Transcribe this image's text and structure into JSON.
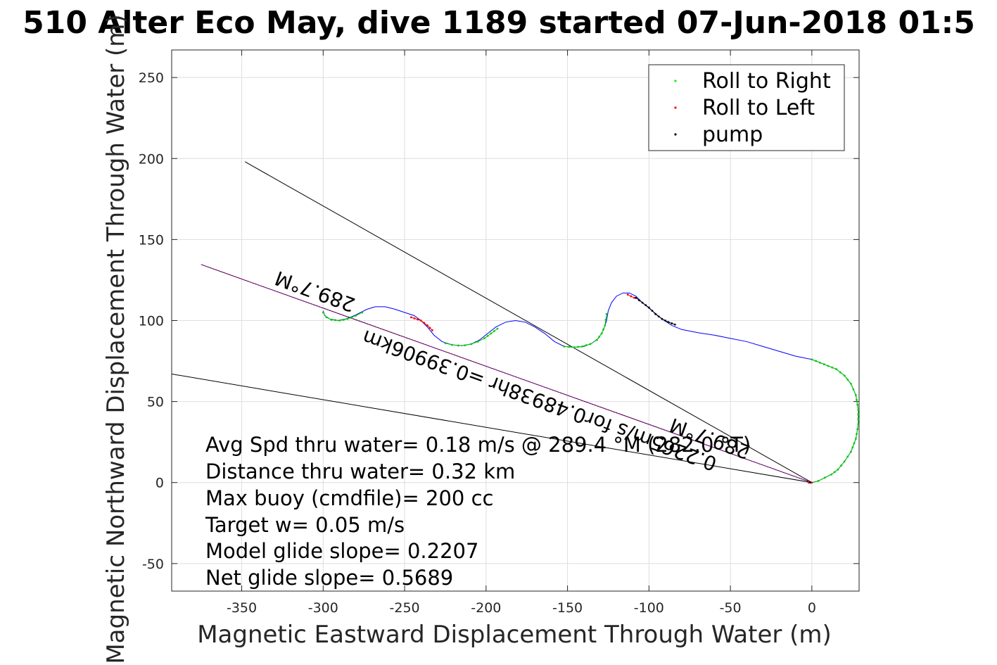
{
  "chart_data": {
    "type": "scatter",
    "title": "510 Alter Eco May, dive 1189 started 07-Jun-2018 01:5",
    "xlabel": "Magnetic Eastward Displacement Through Water (m)",
    "ylabel": "Magnetic Northward Displacement Through Water (m)",
    "xlim": [
      -393,
      29
    ],
    "ylim": [
      -67,
      267
    ],
    "xticks": [
      -350,
      -300,
      -250,
      -200,
      -150,
      -100,
      -50,
      0
    ],
    "yticks": [
      -50,
      0,
      50,
      100,
      150,
      200,
      250
    ],
    "xtick_labels": [
      "-350",
      "-300",
      "-250",
      "-200",
      "-150",
      "-100",
      "-50",
      "0"
    ],
    "ytick_labels": [
      "-50",
      "0",
      "50",
      "100",
      "150",
      "200",
      "250"
    ],
    "grid": true,
    "legend": {
      "placement": "top-right",
      "entries": [
        {
          "label": "Roll to Right",
          "color": "#00ff00"
        },
        {
          "label": "Roll to Left",
          "color": "#ff0000"
        },
        {
          "label": "pump",
          "color": "#000000"
        }
      ]
    },
    "track": {
      "name": "track",
      "color": "#0000ff",
      "points": [
        [
          0,
          0
        ],
        [
          4,
          1
        ],
        [
          8,
          3
        ],
        [
          12,
          5
        ],
        [
          16,
          8
        ],
        [
          20,
          13
        ],
        [
          24,
          19
        ],
        [
          27,
          27
        ],
        [
          28.5,
          36
        ],
        [
          28.5,
          45
        ],
        [
          27,
          54
        ],
        [
          24,
          61
        ],
        [
          20,
          66
        ],
        [
          15,
          70
        ],
        [
          10,
          72
        ],
        [
          5,
          74
        ],
        [
          0,
          76
        ],
        [
          -10,
          78
        ],
        [
          -20,
          81
        ],
        [
          -30,
          84
        ],
        [
          -40,
          87
        ],
        [
          -50,
          89
        ],
        [
          -60,
          91
        ],
        [
          -70,
          92.5
        ],
        [
          -80,
          94.5
        ],
        [
          -86,
          97
        ],
        [
          -92,
          101
        ],
        [
          -98,
          106
        ],
        [
          -104,
          111
        ],
        [
          -108,
          115
        ],
        [
          -112,
          117
        ],
        [
          -116,
          117
        ],
        [
          -120,
          115
        ],
        [
          -123,
          111
        ],
        [
          -125,
          106
        ],
        [
          -126,
          100
        ],
        [
          -128,
          94
        ],
        [
          -131,
          89
        ],
        [
          -135,
          86
        ],
        [
          -140,
          84
        ],
        [
          -146,
          83.5
        ],
        [
          -152,
          84
        ],
        [
          -158,
          87
        ],
        [
          -164,
          92
        ],
        [
          -170,
          96
        ],
        [
          -176,
          99
        ],
        [
          -182,
          100
        ],
        [
          -188,
          99
        ],
        [
          -194,
          96
        ],
        [
          -199,
          92
        ],
        [
          -204,
          88
        ],
        [
          -209,
          85.5
        ],
        [
          -215,
          84.5
        ],
        [
          -221,
          85
        ],
        [
          -227,
          87
        ],
        [
          -232,
          91
        ],
        [
          -236,
          96
        ],
        [
          -240,
          100
        ],
        [
          -244,
          103
        ],
        [
          -250,
          105
        ],
        [
          -256,
          107
        ],
        [
          -262,
          108.5
        ],
        [
          -268,
          108.5
        ],
        [
          -273,
          107
        ],
        [
          -277,
          105
        ],
        [
          -281,
          103
        ],
        [
          -286,
          101
        ],
        [
          -291,
          100
        ],
        [
          -296,
          101
        ],
        [
          -299,
          103
        ],
        [
          -300,
          106
        ]
      ]
    },
    "roll_right_segments": [
      [
        [
          0,
          0
        ],
        [
          4,
          1
        ],
        [
          8,
          3
        ],
        [
          12,
          5
        ],
        [
          16,
          8
        ],
        [
          20,
          13
        ],
        [
          24,
          19
        ],
        [
          27,
          27
        ],
        [
          28.5,
          36
        ],
        [
          28.5,
          45
        ],
        [
          27,
          54
        ],
        [
          24,
          61
        ],
        [
          20,
          66
        ],
        [
          15,
          70
        ],
        [
          10,
          72
        ],
        [
          5,
          74
        ],
        [
          0,
          76
        ]
      ],
      [
        [
          -126,
          104
        ],
        [
          -127,
          97
        ],
        [
          -129,
          92
        ],
        [
          -132,
          88
        ],
        [
          -136,
          85.5
        ],
        [
          -141,
          84
        ],
        [
          -146,
          83.5
        ],
        [
          -152,
          84
        ]
      ],
      [
        [
          -193,
          95
        ],
        [
          -197,
          92
        ],
        [
          -201,
          89
        ],
        [
          -205,
          87
        ],
        [
          -209,
          85.5
        ],
        [
          -213,
          84.7
        ],
        [
          -217,
          84.6
        ],
        [
          -221,
          85
        ],
        [
          -225,
          86
        ]
      ],
      [
        [
          -276,
          105
        ],
        [
          -280,
          103
        ],
        [
          -285,
          101
        ],
        [
          -290,
          100
        ],
        [
          -295,
          100.5
        ],
        [
          -298,
          102
        ],
        [
          -300,
          105
        ]
      ]
    ],
    "roll_left_segments": [
      [
        [
          0,
          0
        ],
        [
          -2,
          0
        ]
      ],
      [
        [
          -246,
          102
        ],
        [
          -240,
          100
        ],
        [
          -236,
          97
        ],
        [
          -233,
          94
        ]
      ],
      [
        [
          -113,
          116
        ],
        [
          -109,
          114
        ]
      ]
    ],
    "pump_segments": [
      [
        [
          -1,
          0
        ]
      ],
      [
        [
          -108,
          114
        ],
        [
          -104,
          111
        ],
        [
          -100,
          108
        ],
        [
          -96,
          104
        ],
        [
          -92,
          101
        ],
        [
          -88,
          99
        ],
        [
          -84,
          97.5
        ]
      ]
    ],
    "reference_lines": [
      {
        "name": "heading-line-upper",
        "points": [
          [
            0,
            0
          ],
          [
            -348,
            198
          ]
        ]
      },
      {
        "name": "heading-line-lower",
        "points": [
          [
            0,
            0
          ],
          [
            -393,
            67
          ]
        ]
      },
      {
        "name": "average-line",
        "points": [
          [
            0,
            0
          ],
          [
            -375,
            134.6
          ]
        ],
        "color": "#cc00cc"
      }
    ],
    "annotations": {
      "upper": "289.7°M",
      "mid": "0.2265m/s for0.48938hr =0.39906km",
      "lower": "289.7°M"
    },
    "stats": [
      "Avg Spd thru water=  0.18 m/s @ 289.4 °M (282.0 °T)",
      "Distance thru water=  0.32 km",
      "Max buoy (cmdfile)= 200 cc",
      "Target w= 0.05 m/s",
      "Model glide slope= 0.2207",
      "Net glide slope= 0.5689"
    ]
  }
}
